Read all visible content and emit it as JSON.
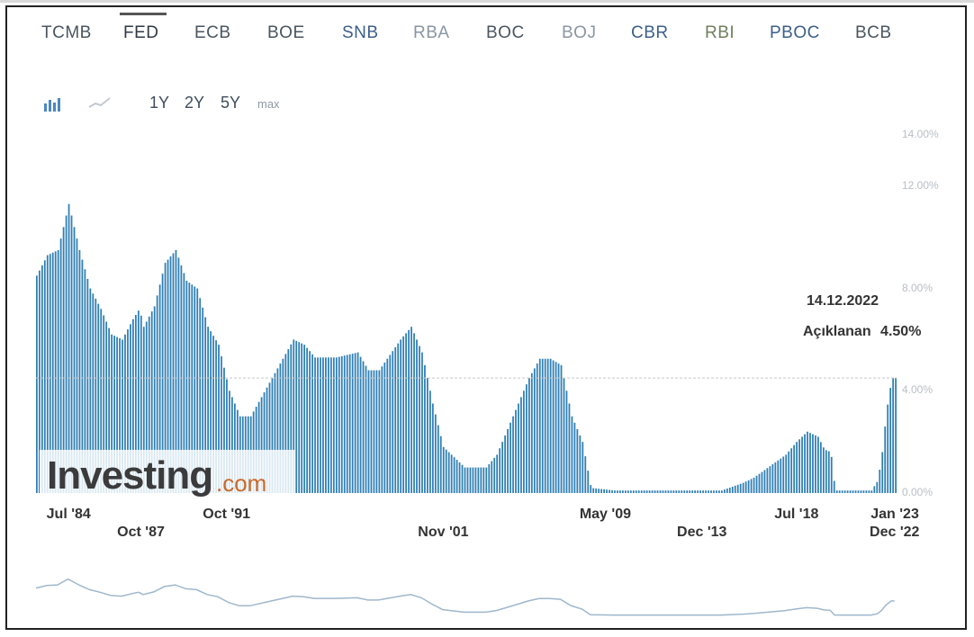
{
  "tabs": [
    {
      "label": "TCMB",
      "active": false
    },
    {
      "label": "FED",
      "active": true
    },
    {
      "label": "ECB",
      "active": false
    },
    {
      "label": "BOE",
      "active": false
    },
    {
      "label": "SNB",
      "active": false
    },
    {
      "label": "RBA",
      "active": false
    },
    {
      "label": "BOC",
      "active": false
    },
    {
      "label": "BOJ",
      "active": false
    },
    {
      "label": "CBR",
      "active": false
    },
    {
      "label": "RBI",
      "active": false
    },
    {
      "label": "PBOC",
      "active": false
    },
    {
      "label": "BCB",
      "active": false
    }
  ],
  "range_buttons": [
    "1Y",
    "2Y",
    "5Y",
    "max"
  ],
  "icons": {
    "bar": "bar-chart-icon",
    "line": "line-chart-icon"
  },
  "logo": {
    "main": "Investing",
    "suffix": ".com"
  },
  "tooltip": {
    "date": "14.12.2022",
    "label": "Açıklanan",
    "value": "4.50%"
  },
  "colors": {
    "bar": "#2f7fb5",
    "tab_active_marker": "#555555"
  },
  "chart_data": {
    "type": "bar",
    "title": "",
    "ylabel": "",
    "xlabel": "",
    "ylim": [
      0,
      14
    ],
    "ytick_labels": [
      "0.00%",
      "4.00%",
      "8.00%",
      "12.00%",
      "14.00%"
    ],
    "yticks": [
      0,
      4,
      8,
      12,
      14
    ],
    "xtick_labels": [
      {
        "label": "Jul '84",
        "t": 1984.5,
        "row": 1
      },
      {
        "label": "Oct '87",
        "t": 1987.8,
        "row": 2
      },
      {
        "label": "Oct '91",
        "t": 1991.8,
        "row": 1
      },
      {
        "label": "Nov '01",
        "t": 2001.85,
        "row": 2
      },
      {
        "label": "May '09",
        "t": 2009.4,
        "row": 1
      },
      {
        "label": "Dec '13",
        "t": 2013.95,
        "row": 2
      },
      {
        "label": "Jul '18",
        "t": 2018.5,
        "row": 1
      },
      {
        "label": "Jan '23",
        "t": 2023.0,
        "row": 1
      },
      {
        "label": "Dec '22",
        "t": 2022.95,
        "row": 2
      }
    ],
    "x_range": [
      1983.0,
      2023.2
    ],
    "series": [
      {
        "points": [
          [
            1983.0,
            8.5
          ],
          [
            1983.5,
            9.3
          ],
          [
            1984.0,
            9.5
          ],
          [
            1984.5,
            11.3
          ],
          [
            1985.0,
            9.5
          ],
          [
            1985.5,
            8.0
          ],
          [
            1986.0,
            7.2
          ],
          [
            1986.5,
            6.2
          ],
          [
            1987.0,
            6.0
          ],
          [
            1987.5,
            6.8
          ],
          [
            1987.8,
            7.2
          ],
          [
            1988.0,
            6.5
          ],
          [
            1988.5,
            7.3
          ],
          [
            1989.0,
            9.0
          ],
          [
            1989.5,
            9.5
          ],
          [
            1990.0,
            8.3
          ],
          [
            1990.5,
            8.0
          ],
          [
            1991.0,
            6.5
          ],
          [
            1991.5,
            5.8
          ],
          [
            1992.0,
            4.0
          ],
          [
            1992.5,
            3.0
          ],
          [
            1993.0,
            3.0
          ],
          [
            1994.0,
            4.5
          ],
          [
            1995.0,
            6.0
          ],
          [
            1995.5,
            5.8
          ],
          [
            1996.0,
            5.3
          ],
          [
            1996.5,
            5.3
          ],
          [
            1997.0,
            5.3
          ],
          [
            1998.0,
            5.5
          ],
          [
            1998.5,
            4.8
          ],
          [
            1999.0,
            4.8
          ],
          [
            2000.0,
            6.0
          ],
          [
            2000.5,
            6.5
          ],
          [
            2001.0,
            5.5
          ],
          [
            2001.5,
            3.5
          ],
          [
            2002.0,
            1.8
          ],
          [
            2003.0,
            1.0
          ],
          [
            2004.0,
            1.0
          ],
          [
            2004.5,
            1.5
          ],
          [
            2005.0,
            2.5
          ],
          [
            2005.5,
            3.5
          ],
          [
            2006.0,
            4.5
          ],
          [
            2006.5,
            5.25
          ],
          [
            2007.0,
            5.25
          ],
          [
            2007.5,
            5.0
          ],
          [
            2008.0,
            3.0
          ],
          [
            2008.5,
            2.0
          ],
          [
            2008.9,
            0.2
          ],
          [
            2010.0,
            0.1
          ],
          [
            2011.0,
            0.1
          ],
          [
            2012.0,
            0.1
          ],
          [
            2013.0,
            0.1
          ],
          [
            2014.0,
            0.1
          ],
          [
            2015.0,
            0.1
          ],
          [
            2016.0,
            0.4
          ],
          [
            2016.5,
            0.6
          ],
          [
            2017.0,
            0.9
          ],
          [
            2017.5,
            1.2
          ],
          [
            2018.0,
            1.5
          ],
          [
            2018.5,
            2.0
          ],
          [
            2019.0,
            2.4
          ],
          [
            2019.5,
            2.2
          ],
          [
            2019.8,
            1.7
          ],
          [
            2020.1,
            1.6
          ],
          [
            2020.3,
            0.1
          ],
          [
            2021.0,
            0.1
          ],
          [
            2022.0,
            0.1
          ],
          [
            2022.3,
            0.5
          ],
          [
            2022.5,
            1.6
          ],
          [
            2022.7,
            3.2
          ],
          [
            2022.95,
            4.5
          ],
          [
            2023.1,
            4.5
          ]
        ]
      }
    ]
  }
}
